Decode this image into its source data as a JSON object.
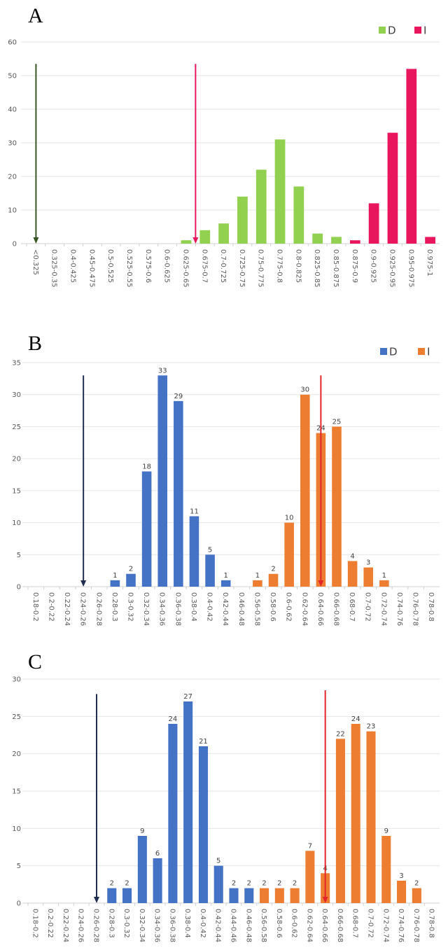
{
  "chart_data": [
    {
      "type": "bar",
      "panel_label": "A",
      "categories": [
        "<0.325",
        "0.325-0.35",
        "0.4-0.425",
        "0.45-0.475",
        "0.5-0.525",
        "0.525-0.55",
        "0.575-0.6",
        "0.6-0.625",
        "0.625-0.65",
        "0.675-0.7",
        "0.7-0.725",
        "0.725-0.75",
        "0.75-0.775",
        "0.775-0.8",
        "0.8-0.825",
        "0.825-0.85",
        "0.85-0.875",
        "0.875-0.9",
        "0.9-0.925",
        "0.925-0.95",
        "0.95-0.975",
        "0.975-1"
      ],
      "series": [
        {
          "name": "D",
          "color": "#92d050",
          "values": [
            0,
            0,
            0,
            0,
            0,
            0,
            0,
            0,
            1,
            4,
            6,
            14,
            22,
            31,
            17,
            3,
            2,
            0,
            0,
            0,
            0,
            0
          ]
        },
        {
          "name": "I",
          "color": "#e8175d",
          "values": [
            0,
            0,
            0,
            0,
            0,
            0,
            0,
            0,
            0,
            0,
            0,
            0,
            0,
            0,
            0,
            0,
            0,
            1,
            12,
            33,
            52,
            2
          ]
        }
      ],
      "yticks": [
        "0",
        "10",
        "20",
        "30",
        "40",
        "50",
        "60"
      ],
      "ylim": [
        0,
        60
      ],
      "data_labels": false,
      "legend": "top-right",
      "arrows": [
        {
          "series": "D",
          "color": "#375623",
          "category_position": 0,
          "from_value": 53.5
        },
        {
          "series": "I",
          "color": "#e8175d",
          "category_position": 8.5,
          "from_value": 53.5
        }
      ]
    },
    {
      "type": "bar",
      "panel_label": "B",
      "categories": [
        "0.18-0.2",
        "0.2-0.22",
        "0.22-0.24",
        "0.24-0.26",
        "0.26-0.28",
        "0.28-0.3",
        "0.3-0.32",
        "0.32-0.34",
        "0.34-0.36",
        "0.36-0.38",
        "0.38-0.4",
        "0.4-0.42",
        "0.42-0.44",
        "0.46-0.48",
        "0.56-0.58",
        "0.58-0.6",
        "0.6-0.62",
        "0.62-0.64",
        "0.64-0.66",
        "0.66-0.68",
        "0.68-0.7",
        "0.7-0.72",
        "0.72-0.74",
        "0.74-0.76",
        "0.76-0.78",
        "0.78-0.8"
      ],
      "series": [
        {
          "name": "D",
          "color": "#4472c4",
          "values": [
            0,
            0,
            0,
            0,
            0,
            1,
            2,
            18,
            33,
            29,
            11,
            5,
            1,
            0,
            0,
            0,
            0,
            0,
            0,
            0,
            0,
            0,
            0,
            0,
            0,
            0
          ]
        },
        {
          "name": "I",
          "color": "#ed7d31",
          "values": [
            0,
            0,
            0,
            0,
            0,
            0,
            0,
            0,
            0,
            0,
            0,
            0,
            0,
            0,
            1,
            2,
            10,
            30,
            24,
            25,
            4,
            3,
            1,
            0,
            0,
            0
          ]
        }
      ],
      "yticks": [
        "0",
        "5",
        "10",
        "15",
        "20",
        "25",
        "30",
        "35"
      ],
      "ylim": [
        0,
        35
      ],
      "data_labels": true,
      "legend": "top-right",
      "arrows": [
        {
          "series": "D",
          "color": "#1f2d50",
          "category_position": 3,
          "from_value": 33
        },
        {
          "series": "I",
          "color": "#e3262a",
          "category_position": 18,
          "from_value": 33
        }
      ]
    },
    {
      "type": "bar",
      "panel_label": "C",
      "categories": [
        "0.18-0.2",
        "0.2-0.22",
        "0.22-0.24",
        "0.24-0.26",
        "0.26-0.28",
        "0.28-0.3",
        "0.3-0.32",
        "0.32-0.34",
        "0.34-0.36",
        "0.36-0.38",
        "0.38-0.4",
        "0.4-0.42",
        "0.42-0.44",
        "0.44-0.46",
        "0.46-0.48",
        "0.56-0.58",
        "0.58-0.6",
        "0.6-0.62",
        "0.62-0.64",
        "0.64-0.66",
        "0.66-0.68",
        "0.68-0.7",
        "0.7-0.72",
        "0.72-0.74",
        "0.74-0.76",
        "0.76-0.78",
        "0.78-0.8"
      ],
      "series": [
        {
          "name": "D",
          "color": "#4472c4",
          "values": [
            0,
            0,
            0,
            0,
            0,
            2,
            2,
            9,
            6,
            24,
            27,
            21,
            5,
            2,
            2,
            0,
            0,
            0,
            0,
            0,
            0,
            0,
            0,
            0,
            0,
            0,
            0
          ]
        },
        {
          "name": "I",
          "color": "#ed7d31",
          "values": [
            0,
            0,
            0,
            0,
            0,
            0,
            0,
            0,
            0,
            0,
            0,
            0,
            0,
            0,
            0,
            2,
            2,
            2,
            7,
            4,
            22,
            24,
            23,
            9,
            3,
            2,
            0
          ]
        }
      ],
      "yticks": [
        "0",
        "5",
        "10",
        "15",
        "20",
        "25",
        "30"
      ],
      "ylim": [
        0,
        30
      ],
      "data_labels": true,
      "legend": "none",
      "arrows": [
        {
          "series": "D",
          "color": "#1f2d50",
          "category_position": 4,
          "from_value": 28
        },
        {
          "series": "I",
          "color": "#e3262a",
          "category_position": 19,
          "from_value": 28.5
        }
      ]
    }
  ]
}
